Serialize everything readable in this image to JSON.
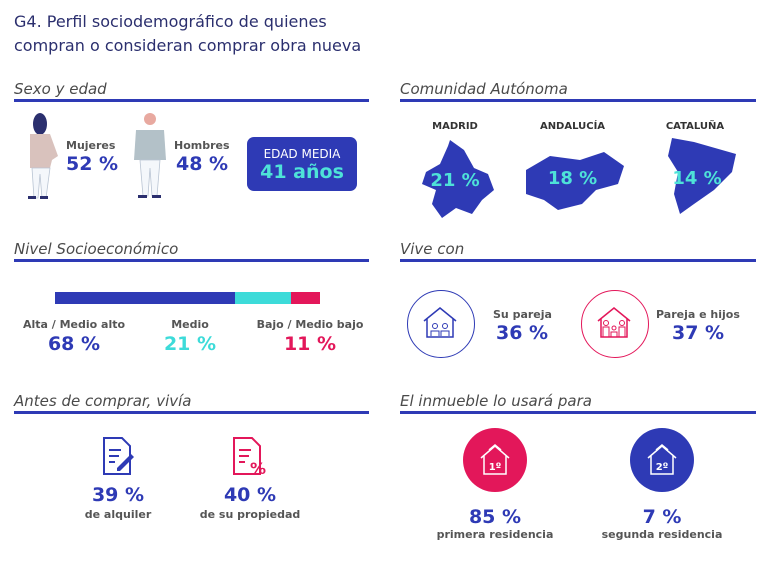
{
  "title": {
    "line1": "G4. Perfil sociodemográfico de quienes",
    "line2": "compran o consideran comprar obra nueva"
  },
  "colors": {
    "navy": "#2b2f6e",
    "blue": "#2e3ab5",
    "teal": "#3ddbd9",
    "pink": "#e3175a"
  },
  "sexo": {
    "heading": "Sexo y edad",
    "mujeres_label": "Mujeres",
    "mujeres_value": "52 %",
    "hombres_label": "Hombres",
    "hombres_value": "48 %",
    "edad_label": "EDAD MEDIA",
    "edad_value": "41 años"
  },
  "comunidad": {
    "heading": "Comunidad Autónoma",
    "items": [
      {
        "label": "MADRID",
        "value": "21 %"
      },
      {
        "label": "ANDALUCÍA",
        "value": "18 %"
      },
      {
        "label": "CATALUÑA",
        "value": "14 %"
      }
    ]
  },
  "nivel": {
    "heading": "Nivel Socioeconómico",
    "items": [
      {
        "label": "Alta / Medio alto",
        "value": "68 %",
        "percent": 68,
        "color": "#2e3ab5"
      },
      {
        "label": "Medio",
        "value": "21 %",
        "percent": 21,
        "color": "#3ddbd9"
      },
      {
        "label": "Bajo / Medio bajo",
        "value": "11 %",
        "percent": 11,
        "color": "#e3175a"
      }
    ]
  },
  "vive": {
    "heading": "Vive con",
    "items": [
      {
        "label": "Su pareja",
        "value": "36 %",
        "icon": "house-couple-icon"
      },
      {
        "label": "Pareja e hijos",
        "value": "37 %",
        "icon": "house-family-icon"
      }
    ]
  },
  "antes": {
    "heading": "Antes de comprar, vivía",
    "items": [
      {
        "value": "39 %",
        "label": "de alquiler",
        "icon": "contract-document-icon"
      },
      {
        "value": "40 %",
        "label": "de su propiedad",
        "icon": "percent-document-icon"
      }
    ]
  },
  "uso": {
    "heading": "El inmueble lo usará para",
    "items": [
      {
        "badge": "1º",
        "value": "85 %",
        "label": "primera residencia",
        "icon": "house-first-icon"
      },
      {
        "badge": "2º",
        "value": "7 %",
        "label": "segunda residencia",
        "icon": "house-second-icon"
      }
    ]
  }
}
